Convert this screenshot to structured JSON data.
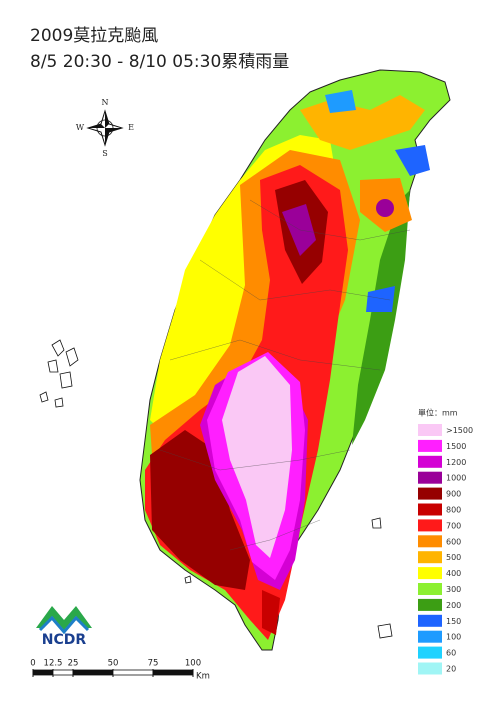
{
  "title": {
    "line1": "2009莫拉克颱風",
    "line2": "8/5 20:30 - 8/10 05:30累積雨量"
  },
  "compass": {
    "n": "N",
    "s": "S",
    "e": "E",
    "w": "W"
  },
  "legend": {
    "title": "單位：mm",
    "items": [
      {
        "label": ">1500",
        "color": "#fac8f5"
      },
      {
        "label": "1500",
        "color": "#ff1fff"
      },
      {
        "label": "1200",
        "color": "#d400d4"
      },
      {
        "label": "1000",
        "color": "#9a0099"
      },
      {
        "label": "900",
        "color": "#960000"
      },
      {
        "label": "800",
        "color": "#c80000"
      },
      {
        "label": "700",
        "color": "#ff1a1a"
      },
      {
        "label": "600",
        "color": "#ff8c00"
      },
      {
        "label": "500",
        "color": "#ffb400"
      },
      {
        "label": "400",
        "color": "#ffff00"
      },
      {
        "label": "300",
        "color": "#8cf030"
      },
      {
        "label": "200",
        "color": "#3c9e14"
      },
      {
        "label": "150",
        "color": "#1e64ff"
      },
      {
        "label": "100",
        "color": "#1e9bff"
      },
      {
        "label": "60",
        "color": "#1ed2ff"
      },
      {
        "label": "20",
        "color": "#a0f5f5"
      }
    ]
  },
  "scale_bar": {
    "ticks": [
      0,
      12.5,
      25,
      50,
      75,
      100
    ],
    "unit": "Km"
  },
  "logo": {
    "text": "NCDR"
  }
}
